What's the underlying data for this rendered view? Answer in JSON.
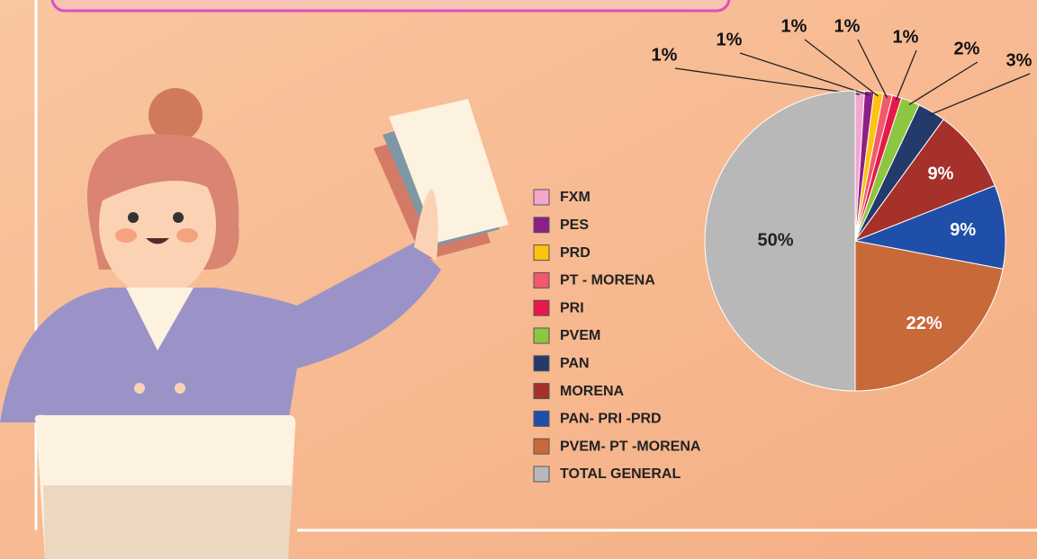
{
  "chart_data": {
    "type": "pie",
    "categories": [
      "FXM",
      "PES",
      "PRD",
      "PT - MORENA",
      "PRI",
      "PVEM",
      "PAN",
      "MORENA",
      "PAN- PRI -PRD",
      "PVEM- PT -MORENA",
      "TOTAL GENERAL"
    ],
    "values": [
      1,
      1,
      1,
      1,
      1,
      2,
      3,
      9,
      9,
      22,
      50
    ],
    "value_labels": [
      "1%",
      "1%",
      "1%",
      "1%",
      "1%",
      "2%",
      "3%",
      "9%",
      "9%",
      "22%",
      "50%"
    ],
    "colors": [
      "#f4a6cf",
      "#8e1f86",
      "#ffc20e",
      "#f05a6a",
      "#e8184b",
      "#8dc63f",
      "#243a6b",
      "#a6302a",
      "#1f4fa8",
      "#c8693a",
      "#b8b8b8"
    ],
    "legend": "right"
  }
}
